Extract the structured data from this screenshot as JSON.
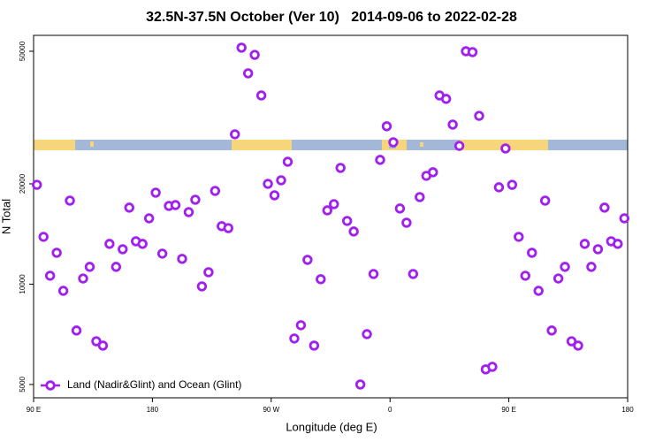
{
  "chart_data": {
    "type": "scatter",
    "title": "32.5N-37.5N October (Ver 10)   2014-09-06 to 2022-02-28",
    "xlabel": "Longitude (deg E)",
    "ylabel": "N Total",
    "xlim": [
      90,
      540
    ],
    "ylim": [
      4560,
      55800
    ],
    "ylog": true,
    "xticks": [
      {
        "value": 90,
        "label": "90 E"
      },
      180,
      {
        "value": 270,
        "label": "90 W"
      },
      {
        "value": 360,
        "label": "0"
      },
      {
        "value": 450,
        "label": "90 E"
      },
      {
        "value": 540,
        "label": "180"
      }
    ],
    "yticks": [
      5000,
      10000,
      20000,
      50000
    ],
    "legend": "bottomleft",
    "series": [
      {
        "name": "Land (Nadir&Glint) and Ocean (Glint)",
        "color": "#a020f0",
        "x": [
          92.5,
          97.5,
          102.5,
          107.5,
          112.5,
          117.5,
          122.5,
          127.5,
          132.5,
          137.5,
          142.5,
          147.5,
          152.5,
          157.5,
          162.5,
          167.5,
          172.5,
          177.5,
          182.5,
          187.5,
          192.5,
          197.5,
          202.5,
          207.5,
          212.5,
          217.5,
          222.5,
          227.5,
          232.5,
          237.5,
          242.5,
          247.5,
          252.5,
          257.5,
          262.5,
          267.5,
          272.5,
          277.5,
          282.5,
          287.5,
          292.5,
          297.5,
          302.5,
          307.5,
          312.5,
          317.5,
          322.5,
          327.5,
          332.5,
          337.5,
          342.5,
          347.5,
          352.5,
          357.5,
          362.5,
          367.5,
          372.5,
          377.5,
          382.5,
          387.5,
          392.5,
          397.5,
          402.5,
          407.5,
          412.5,
          417.5,
          422.5,
          427.5,
          432.5,
          437.5,
          442.5,
          447.5,
          452.5,
          457.5,
          462.5,
          467.5,
          472.5,
          477.5,
          482.5,
          487.5,
          492.5,
          497.5,
          502.5,
          507.5,
          512.5,
          517.5,
          522.5,
          527.5,
          532.5,
          537.5
        ],
        "values": [
          19870,
          13870,
          10600,
          12420,
          9550,
          17810,
          7260,
          10400,
          11270,
          6740,
          6540,
          13210,
          11270,
          12730,
          16970,
          13450,
          13210,
          15760,
          18820,
          12350,
          17170,
          17270,
          11910,
          16450,
          17920,
          9850,
          10860,
          19050,
          14930,
          14730,
          28170,
          51250,
          42930,
          48770,
          36840,
          20000,
          18480,
          20500,
          23300,
          6870,
          7530,
          11830,
          6540,
          10350,
          16650,
          17380,
          22330,
          15480,
          14390,
          5000,
          7080,
          10730,
          23600,
          29780,
          26660,
          16870,
          15290,
          10730,
          18250,
          21140,
          21670,
          36840,
          35970,
          30120,
          26000,
          50000,
          49700,
          32000,
          5550,
          5650,
          19530,
          25540,
          19870,
          13870,
          10600,
          12420,
          9550,
          17810,
          7260,
          10400,
          11270,
          6740,
          6540,
          13210,
          11270,
          12730,
          16970,
          13450,
          13210,
          15760
        ]
      }
    ]
  }
}
